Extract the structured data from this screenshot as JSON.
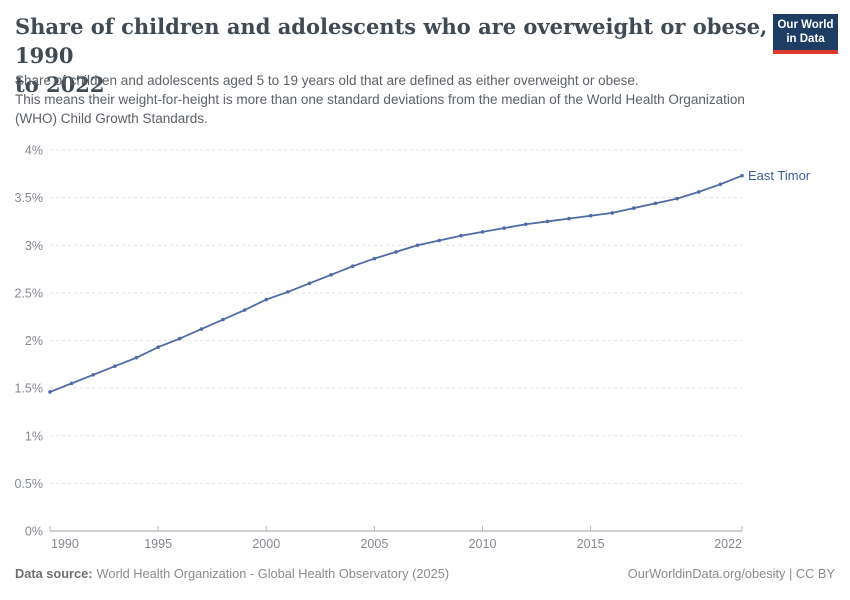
{
  "header": {
    "title_line1": "Share of children and adolescents who are overweight or obese, 1990",
    "title_line2": "to 2022",
    "subtitle": {
      "lines": [
        "Share of children and adolescents aged 5 to 19 years old that are defined as either overweight or obese.",
        "This means their weight-for-height is more than one standard deviations from the median of the World Health Organization",
        "(WHO) Child Growth Standards."
      ]
    },
    "logo": {
      "line1": "Our World",
      "line2": "in Data",
      "bg_color": "#1d3d63",
      "stripe_color": "#dc3a2f"
    }
  },
  "chart_data": {
    "type": "line",
    "title": "Share of children and adolescents who are overweight or obese, 1990 to 2022",
    "xlabel": "",
    "ylabel": "",
    "unit": "%",
    "xlim": [
      1990,
      2022
    ],
    "ylim": [
      0,
      4
    ],
    "grid": "horizontal-dashed",
    "x_ticks": [
      1990,
      1995,
      2000,
      2005,
      2010,
      2015,
      2022
    ],
    "y_ticks": [
      0,
      0.5,
      1,
      1.5,
      2,
      2.5,
      3,
      3.5,
      4
    ],
    "y_tick_labels": [
      "0%",
      "0.5%",
      "1%",
      "1.5%",
      "2%",
      "2.5%",
      "3%",
      "3.5%",
      "4%"
    ],
    "series": [
      {
        "name": "East Timor",
        "color": "#4f6ba6",
        "label_color": "#3d5c9d",
        "years": [
          1990,
          1991,
          1992,
          1993,
          1994,
          1995,
          1996,
          1997,
          1998,
          1999,
          2000,
          2001,
          2002,
          2003,
          2004,
          2005,
          2006,
          2007,
          2008,
          2009,
          2010,
          2011,
          2012,
          2013,
          2014,
          2015,
          2016,
          2017,
          2018,
          2019,
          2020,
          2021,
          2022
        ],
        "values": [
          1.46,
          1.55,
          1.64,
          1.73,
          1.82,
          1.93,
          2.02,
          2.12,
          2.22,
          2.32,
          2.43,
          2.51,
          2.6,
          2.69,
          2.78,
          2.86,
          2.93,
          3.0,
          3.05,
          3.1,
          3.14,
          3.18,
          3.22,
          3.25,
          3.28,
          3.31,
          3.34,
          3.39,
          3.44,
          3.49,
          3.56,
          3.64,
          3.73
        ]
      }
    ]
  },
  "footer": {
    "datasource_label": "Data source:",
    "datasource_value": "World Health Organization - Global Health Observatory (2025)",
    "credit": "OurWorldinData.org/obesity | CC BY"
  }
}
